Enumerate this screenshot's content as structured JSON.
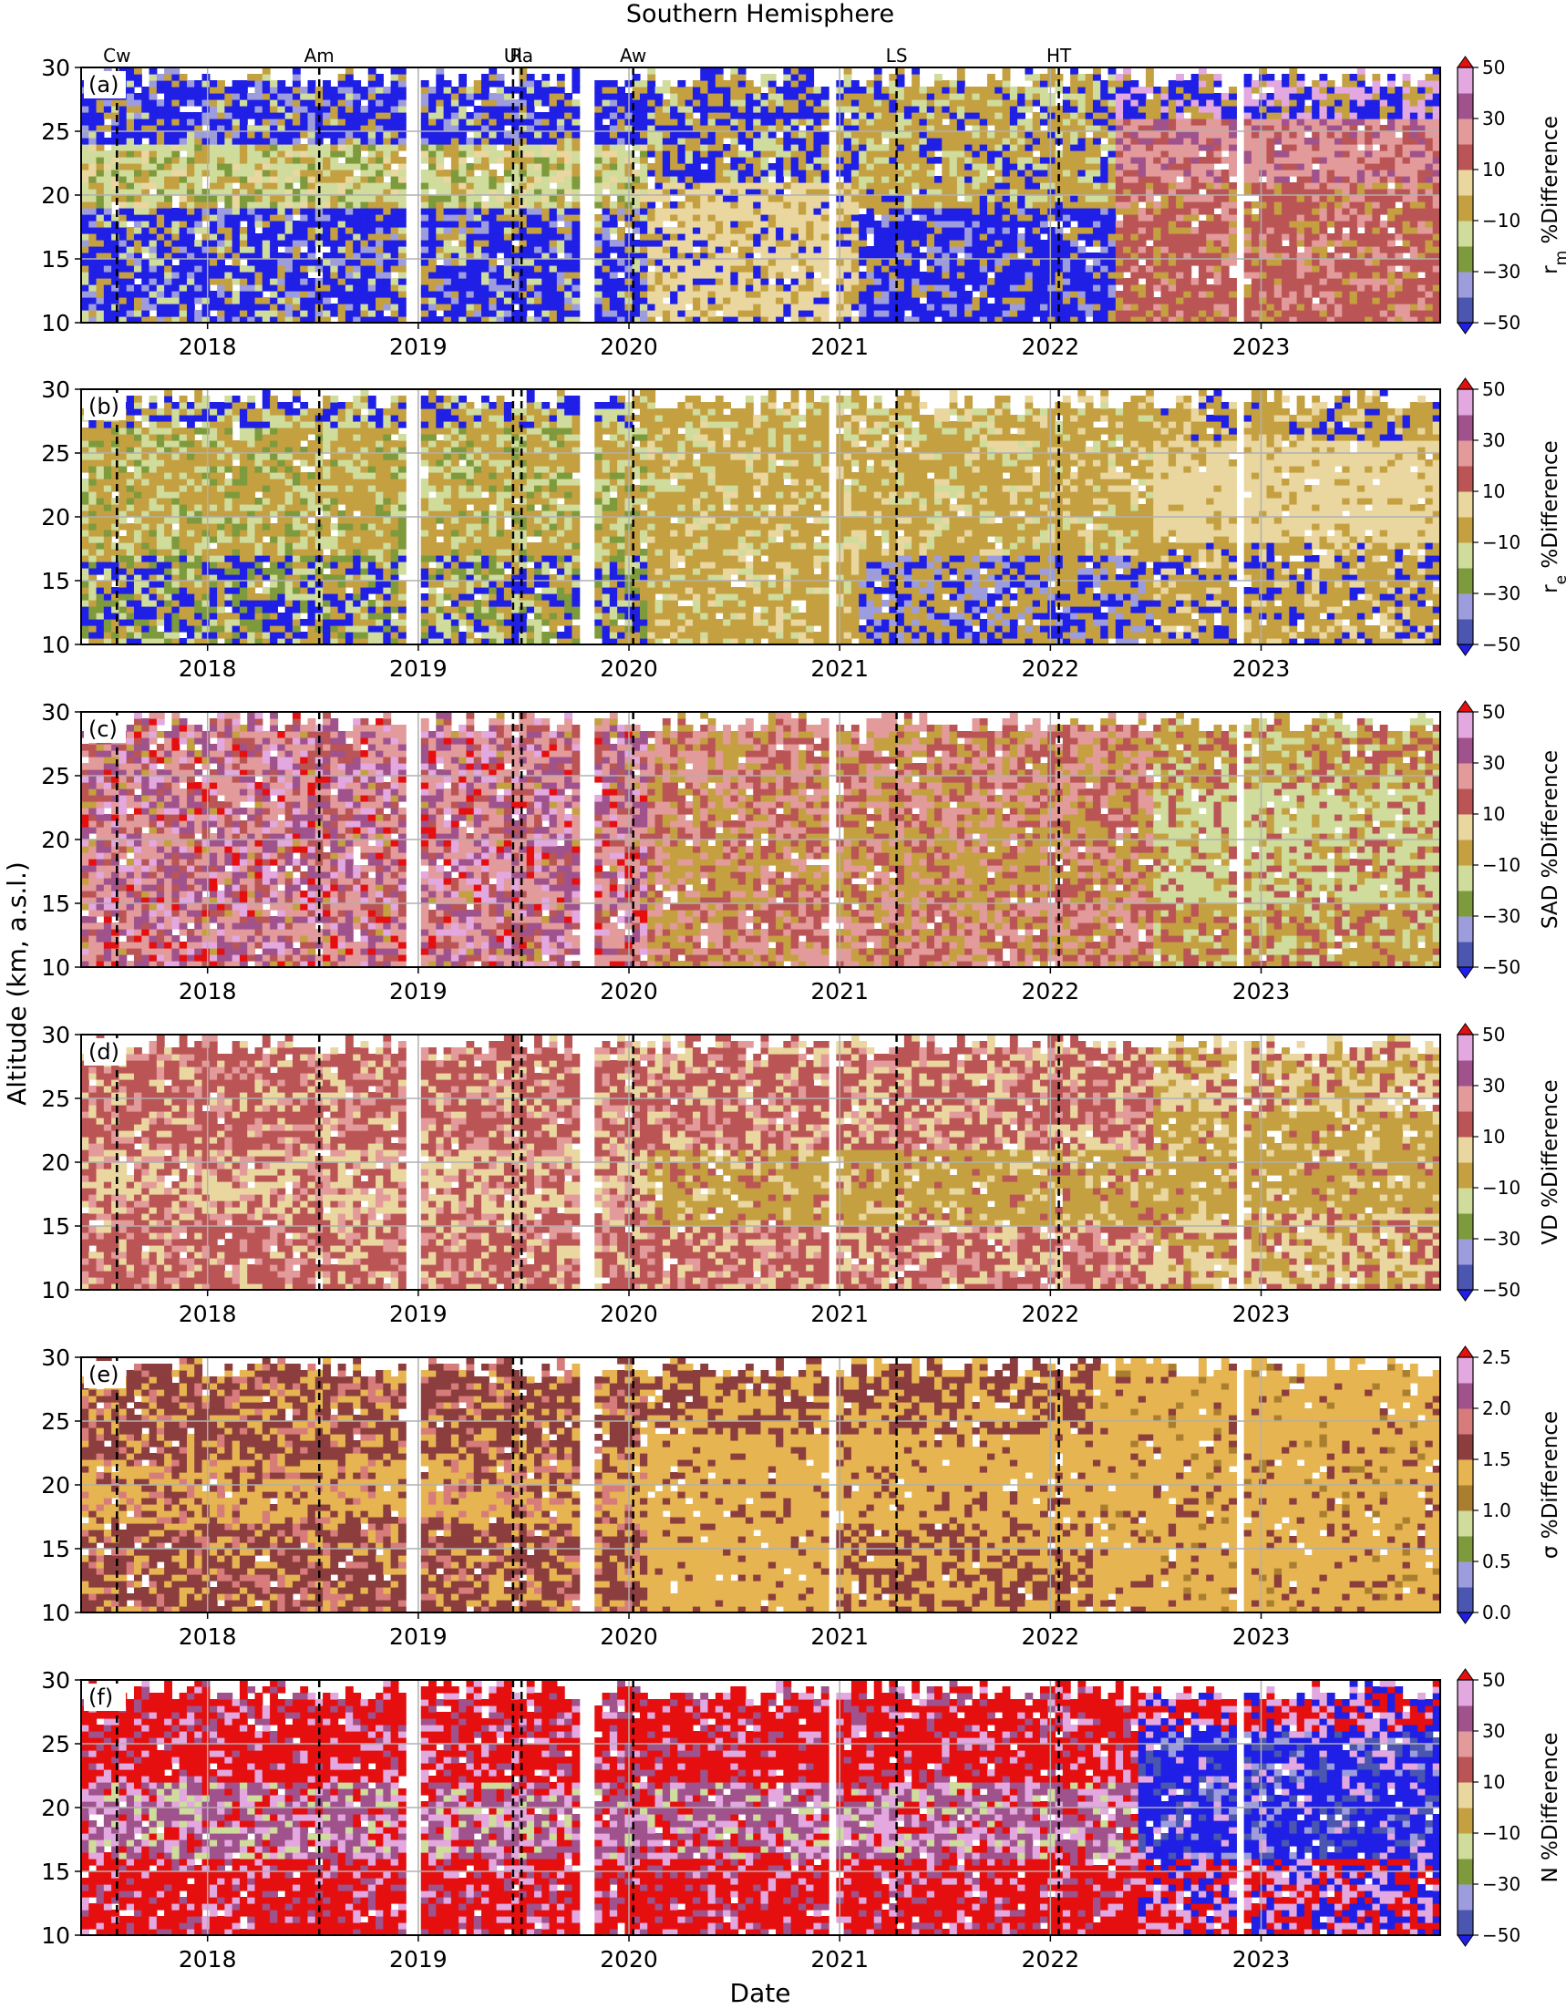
{
  "figure": {
    "title": "Southern Hemisphere",
    "xlabel": "Date",
    "ylabel": "Altitude (km, a.s.l.)"
  },
  "chart_data": {
    "type": "heatmap",
    "xlim": [
      2017.4,
      2023.85
    ],
    "ylim": [
      10,
      30
    ],
    "x_ticks": [
      2018,
      2019,
      2020,
      2021,
      2022,
      2023
    ],
    "x_tick_labels": [
      "2018",
      "2019",
      "2020",
      "2021",
      "2022",
      "2023"
    ],
    "y_ticks": [
      10,
      15,
      20,
      25,
      30
    ],
    "y_tick_labels": [
      "10",
      "15",
      "20",
      "25",
      "30"
    ],
    "grid": true,
    "events": [
      {
        "label": "Cw",
        "x": 2017.57
      },
      {
        "label": "Am",
        "x": 2018.53
      },
      {
        "label": "Ul",
        "x": 2019.45
      },
      {
        "label": "Ra",
        "x": 2019.49
      },
      {
        "label": "Aw",
        "x": 2020.02
      },
      {
        "label": "LS",
        "x": 2021.27
      },
      {
        "label": "HT",
        "x": 2022.04
      }
    ],
    "data_gaps": [
      [
        2018.95,
        2019.0
      ],
      [
        2019.78,
        2019.83
      ],
      [
        2020.95,
        2020.99
      ],
      [
        2022.88,
        2022.93
      ]
    ],
    "panels": [
      {
        "id": "(a)",
        "colorbar_label": "r",
        "colorbar_label_sub": "m",
        "colorbar_label_suffix": " %Difference",
        "cbar_levels": [
          -50,
          -40,
          -30,
          -20,
          -10,
          0,
          10,
          20,
          30,
          40,
          50
        ],
        "cbar_tick_labels": [
          "−50",
          "−30",
          "−10",
          "10",
          "30",
          "50"
        ],
        "palette": [
          "#1f1fe6",
          "#4a56b0",
          "#9d9ddd",
          "#7d9a3c",
          "#cfdc9c",
          "#c4a040",
          "#ead7a0",
          "#bb5555",
          "#e39a9a",
          "#a0528c",
          "#e2a8df",
          "#e60f0f"
        ]
      },
      {
        "id": "(b)",
        "colorbar_label": "r",
        "colorbar_label_sub": "e",
        "colorbar_label_suffix": " %Difference",
        "cbar_levels": [
          -50,
          -40,
          -30,
          -20,
          -10,
          0,
          10,
          20,
          30,
          40,
          50
        ],
        "cbar_tick_labels": [
          "−50",
          "−30",
          "−10",
          "10",
          "30",
          "50"
        ],
        "palette": [
          "#1f1fe6",
          "#4a56b0",
          "#9d9ddd",
          "#7d9a3c",
          "#cfdc9c",
          "#c4a040",
          "#ead7a0",
          "#bb5555",
          "#e39a9a",
          "#a0528c",
          "#e2a8df",
          "#e60f0f"
        ]
      },
      {
        "id": "(c)",
        "colorbar_label": "SAD",
        "colorbar_label_sub": "",
        "colorbar_label_suffix": " %Difference",
        "cbar_levels": [
          -50,
          -40,
          -30,
          -20,
          -10,
          0,
          10,
          20,
          30,
          40,
          50
        ],
        "cbar_tick_labels": [
          "−50",
          "−30",
          "−10",
          "10",
          "30",
          "50"
        ],
        "palette": [
          "#1f1fe6",
          "#4a56b0",
          "#9d9ddd",
          "#7d9a3c",
          "#cfdc9c",
          "#c4a040",
          "#ead7a0",
          "#bb5555",
          "#e39a9a",
          "#a0528c",
          "#e2a8df",
          "#e60f0f"
        ]
      },
      {
        "id": "(d)",
        "colorbar_label": "VD",
        "colorbar_label_sub": "",
        "colorbar_label_suffix": " %Difference",
        "cbar_levels": [
          -50,
          -40,
          -30,
          -20,
          -10,
          0,
          10,
          20,
          30,
          40,
          50
        ],
        "cbar_tick_labels": [
          "−50",
          "−30",
          "−10",
          "10",
          "30",
          "50"
        ],
        "palette": [
          "#1f1fe6",
          "#4a56b0",
          "#9d9ddd",
          "#7d9a3c",
          "#cfdc9c",
          "#c4a040",
          "#ead7a0",
          "#bb5555",
          "#e39a9a",
          "#a0528c",
          "#e2a8df",
          "#e60f0f"
        ]
      },
      {
        "id": "(e)",
        "colorbar_label": "σ",
        "colorbar_label_sub": "",
        "colorbar_label_suffix": " %Difference",
        "cbar_levels": [
          0.0,
          0.25,
          0.5,
          0.75,
          1.0,
          1.25,
          1.5,
          1.75,
          2.0,
          2.25,
          2.5
        ],
        "cbar_tick_labels": [
          "0.0",
          "0.5",
          "1.0",
          "1.5",
          "2.0",
          "2.5"
        ],
        "palette": [
          "#1f1fe6",
          "#4a56b0",
          "#9d9ddd",
          "#7d9a3c",
          "#cfdc9c",
          "#a97e2e",
          "#e6b551",
          "#8c3d3d",
          "#d77b7b",
          "#a0528c",
          "#e2a8df",
          "#e60f0f"
        ]
      },
      {
        "id": "(f)",
        "colorbar_label": "N",
        "colorbar_label_sub": "",
        "colorbar_label_suffix": " %Difference",
        "cbar_levels": [
          -50,
          -40,
          -30,
          -20,
          -10,
          0,
          10,
          20,
          30,
          40,
          50
        ],
        "cbar_tick_labels": [
          "−50",
          "−30",
          "−10",
          "10",
          "30",
          "50"
        ],
        "palette": [
          "#1f1fe6",
          "#4a56b0",
          "#9d9ddd",
          "#7d9a3c",
          "#cfdc9c",
          "#c4a040",
          "#ead7a0",
          "#bb5555",
          "#e39a9a",
          "#a0528c",
          "#e2a8df",
          "#e60f0f"
        ]
      }
    ]
  }
}
